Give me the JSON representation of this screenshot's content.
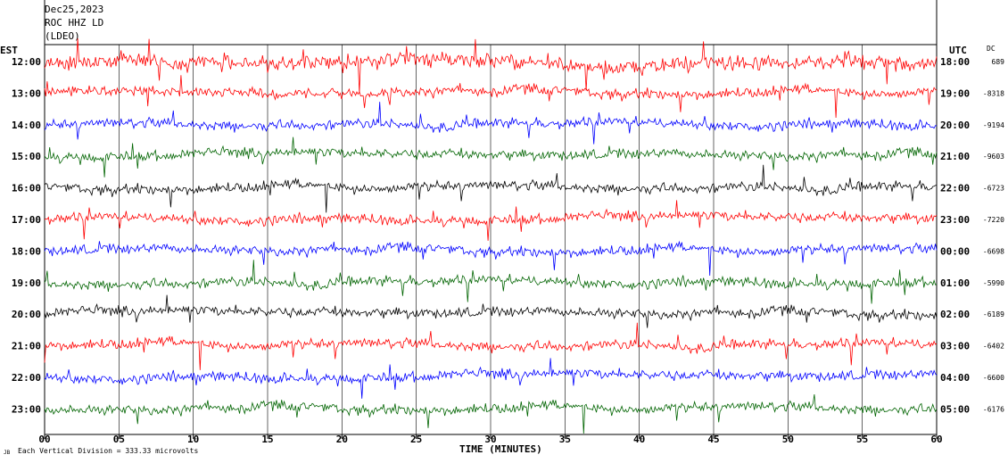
{
  "header": {
    "date": "Dec25,2023",
    "station": "ROC HHZ LD",
    "network": "(LDEO)"
  },
  "chart_data": {
    "type": "line",
    "title": "Dec25,2023 ROC HHZ LD (LDEO)",
    "xlabel": "TIME (MINUTES)",
    "left_axis_label": "EST",
    "right_axis_label": "UTC",
    "dc_label": "DC",
    "xlim": [
      0,
      60
    ],
    "x_ticks": [
      "00",
      "05",
      "10",
      "15",
      "20",
      "25",
      "30",
      "35",
      "40",
      "45",
      "50",
      "55",
      "60"
    ],
    "footnote": "Each Vertical Division = 333.33 microvolts",
    "trace_colors": [
      "#ff0000",
      "#0000ff",
      "#000000",
      "#006400"
    ],
    "rows": [
      {
        "est": "12:00",
        "utc": "18:00",
        "dc": "689",
        "color": "#ff0000"
      },
      {
        "est": "13:00",
        "utc": "19:00",
        "dc": "-8318",
        "color": "#ff0000"
      },
      {
        "est": "14:00",
        "utc": "20:00",
        "dc": "-9194",
        "color": "#0000ff"
      },
      {
        "est": "15:00",
        "utc": "21:00",
        "dc": "-9603",
        "color": "#006400"
      },
      {
        "est": "16:00",
        "utc": "22:00",
        "dc": "-6723",
        "color": "#000000"
      },
      {
        "est": "17:00",
        "utc": "23:00",
        "dc": "-7220",
        "color": "#ff0000"
      },
      {
        "est": "18:00",
        "utc": "00:00",
        "dc": "-6698",
        "color": "#0000ff"
      },
      {
        "est": "19:00",
        "utc": "01:00",
        "dc": "-5990",
        "color": "#006400"
      },
      {
        "est": "20:00",
        "utc": "02:00",
        "dc": "-6189",
        "color": "#000000"
      },
      {
        "est": "21:00",
        "utc": "03:00",
        "dc": "-6402",
        "color": "#ff0000"
      },
      {
        "est": "22:00",
        "utc": "04:00",
        "dc": "-6600",
        "color": "#0000ff"
      },
      {
        "est": "23:00",
        "utc": "05:00",
        "dc": "-6176",
        "color": "#006400"
      }
    ]
  }
}
